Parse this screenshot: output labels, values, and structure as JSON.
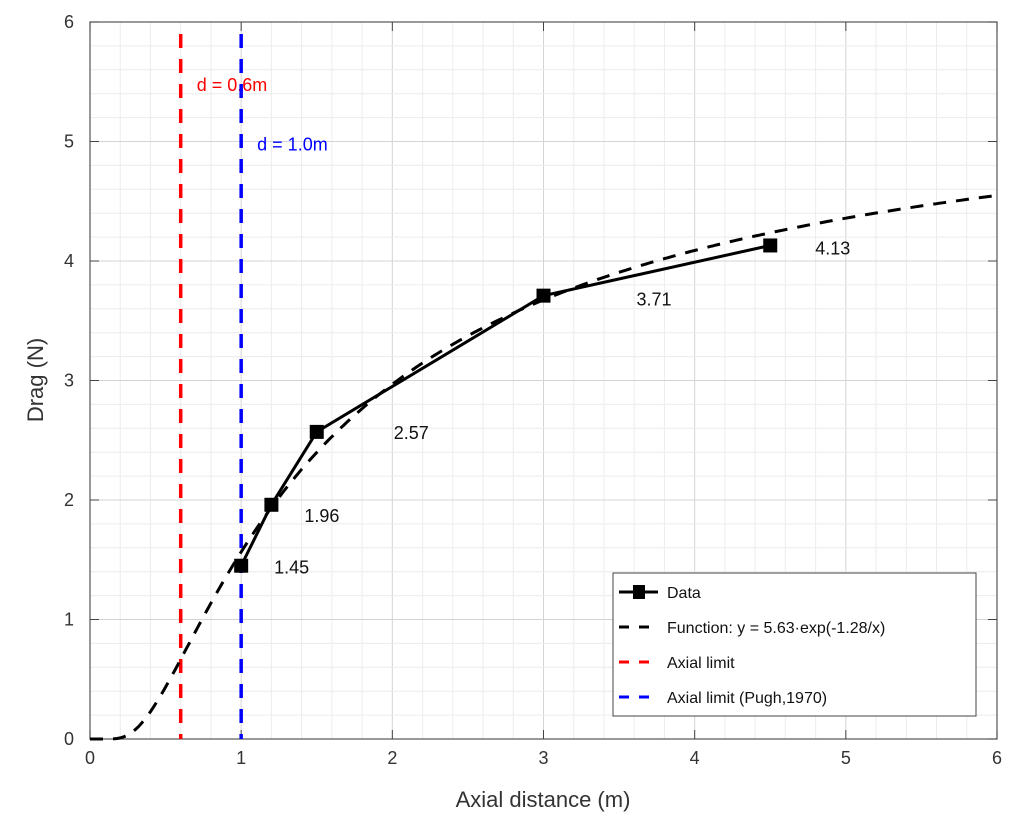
{
  "chart_data": {
    "type": "line",
    "title": "",
    "xlabel": "Axial distance (m)",
    "ylabel": "Drag (N)",
    "xlim": [
      0,
      6
    ],
    "ylim": [
      0,
      6
    ],
    "xticks": [
      "0",
      "1",
      "2",
      "3",
      "4",
      "5",
      "6"
    ],
    "yticks": [
      "0",
      "1",
      "2",
      "3",
      "4",
      "5",
      "6"
    ],
    "grid": "major and minor",
    "legend_position": "bottom-right",
    "series": [
      {
        "name": "Data",
        "style": "solid with square markers",
        "color": "#000000",
        "x": [
          1,
          1.2,
          1.5,
          3,
          4.5
        ],
        "y": [
          1.45,
          1.96,
          2.57,
          3.71,
          4.13
        ],
        "labels": [
          "1.45",
          "1.96",
          "2.57",
          "3.71",
          "4.13"
        ]
      },
      {
        "name": "Function: y = 5.63·exp(-1.28/x)",
        "style": "dashed",
        "color": "#000000",
        "function": {
          "a": 5.63,
          "b": -1.28
        },
        "x_range": [
          0,
          6
        ]
      },
      {
        "name": "Axial limit",
        "style": "dashed vertical",
        "color": "#ff0000",
        "x": 0.6,
        "annotation": "d = 0.6m"
      },
      {
        "name": "Axial limit (Pugh,1970)",
        "style": "dashed vertical",
        "color": "#0000ff",
        "x": 1.0,
        "annotation": "d = 1.0m"
      }
    ]
  }
}
